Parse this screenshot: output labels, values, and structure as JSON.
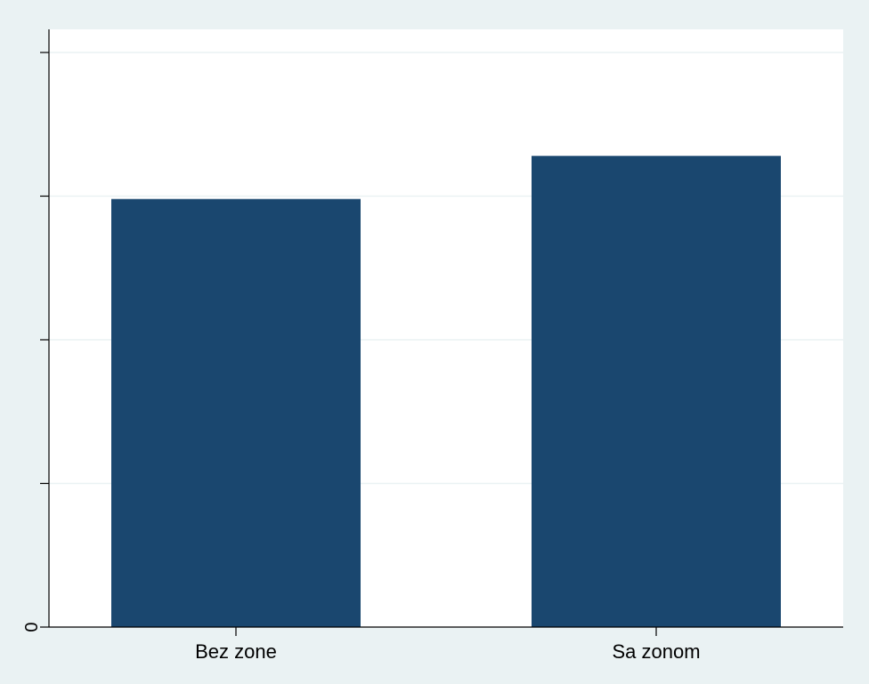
{
  "colors": {
    "outer_background": "#EAF2F3",
    "plot_background": "#FFFFFF",
    "gridline": "#EAF2F3",
    "axis": "#000000",
    "bar": "#1A476F"
  },
  "chart_data": {
    "type": "bar",
    "title": "",
    "xlabel": "",
    "ylabel": "",
    "categories": [
      "Bez zone",
      "Sa zonom"
    ],
    "values": [
      2.98,
      3.28
    ],
    "ylim": [
      0,
      4
    ],
    "y_ticks": [
      0,
      1,
      2,
      3,
      4
    ],
    "y_tick_labels": [
      "0",
      "",
      "",
      "",
      ""
    ],
    "grid": true,
    "legend": "none"
  }
}
